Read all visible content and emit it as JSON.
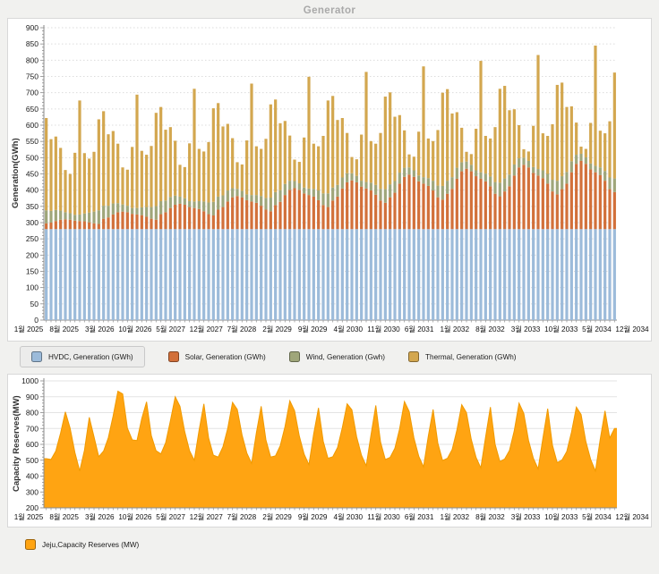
{
  "app": {
    "background": "#f1f1ef",
    "panel_border": "#d8d8d8",
    "title_color": "#a9a9a9"
  },
  "chart_data": [
    {
      "type": "bar",
      "stacked": true,
      "title": "Generator",
      "ylabel": "Generation(GWh)",
      "ylim": [
        0,
        900
      ],
      "ytick_step": 50,
      "grid": "dotted-horizontal",
      "legend_position": "bottom",
      "selected_legend": "HVDC, Generation (GWh)",
      "x_tick_labels": [
        "1월 2025",
        "8월 2025",
        "3월 2026",
        "10월 2026",
        "5월 2027",
        "12월 2027",
        "7월 2028",
        "2월 2029",
        "9월 2029",
        "4월 2030",
        "11월 2030",
        "6월 2031",
        "1월 2032",
        "8월 2032",
        "3월 2033",
        "10월 2033",
        "5월 2034",
        "12월 2034"
      ],
      "series": [
        {
          "name": "HVDC, Generation (GWh)",
          "color": "#9cbbda",
          "values": [
            280,
            280,
            280,
            280,
            280,
            280,
            280,
            280,
            280,
            280,
            280,
            280,
            280,
            280,
            280,
            280,
            280,
            280,
            280,
            280,
            280,
            280,
            280,
            280,
            280,
            280,
            280,
            280,
            280,
            280,
            280,
            280,
            280,
            280,
            280,
            280,
            280,
            280,
            280,
            280,
            280,
            280,
            280,
            280,
            280,
            280,
            280,
            280,
            280,
            280,
            280,
            280,
            280,
            280,
            280,
            280,
            280,
            280,
            280,
            280,
            280,
            280,
            280,
            280,
            280,
            280,
            280,
            280,
            280,
            280,
            280,
            280,
            280,
            280,
            280,
            280,
            280,
            280,
            280,
            280,
            280,
            280,
            280,
            280,
            280,
            280,
            280,
            280,
            280,
            280,
            280,
            280,
            280,
            280,
            280,
            280,
            280,
            280,
            280,
            280,
            280,
            280,
            280,
            280,
            280,
            280,
            280,
            280,
            280,
            280,
            280,
            280,
            280,
            280,
            280,
            280,
            280,
            280,
            280,
            280
          ]
        },
        {
          "name": "Solar, Generation (GWh)",
          "color": "#d2703a",
          "values": [
            18,
            20,
            25,
            29,
            30,
            29,
            26,
            25,
            24,
            21,
            18,
            16,
            32,
            36,
            45,
            52,
            54,
            52,
            47,
            45,
            43,
            38,
            32,
            29,
            46,
            52,
            65,
            75,
            78,
            75,
            68,
            65,
            62,
            55,
            46,
            42,
            60,
            68,
            85,
            98,
            102,
            98,
            89,
            85,
            81,
            72,
            60,
            55,
            74,
            84,
            105,
            121,
            126,
            121,
            110,
            105,
            100,
            89,
            74,
            68,
            88,
            100,
            125,
            144,
            150,
            144,
            131,
            125,
            119,
            106,
            88,
            81,
            98,
            112,
            140,
            161,
            168,
            161,
            147,
            140,
            133,
            119,
            98,
            91,
            109,
            124,
            155,
            178,
            186,
            178,
            163,
            155,
            147,
            132,
            109,
            101,
            116,
            132,
            165,
            190,
            198,
            190,
            173,
            165,
            157,
            140,
            116,
            107,
            123,
            140,
            175,
            201,
            210,
            201,
            184,
            175,
            166,
            149,
            123,
            114
          ]
        },
        {
          "name": "Wind, Generation (Gwh)",
          "color": "#9fa67a",
          "values": [
            40,
            36,
            34,
            28,
            22,
            20,
            18,
            20,
            24,
            30,
            36,
            42,
            40,
            36,
            34,
            28,
            22,
            20,
            18,
            20,
            24,
            30,
            36,
            42,
            40,
            36,
            34,
            28,
            22,
            20,
            18,
            20,
            24,
            30,
            36,
            42,
            40,
            36,
            34,
            28,
            22,
            20,
            18,
            20,
            24,
            30,
            36,
            42,
            40,
            36,
            34,
            28,
            22,
            20,
            18,
            20,
            24,
            30,
            36,
            42,
            40,
            36,
            34,
            28,
            22,
            20,
            18,
            20,
            24,
            30,
            36,
            42,
            40,
            36,
            34,
            28,
            22,
            20,
            18,
            20,
            24,
            30,
            36,
            42,
            40,
            36,
            34,
            28,
            22,
            20,
            18,
            20,
            24,
            30,
            36,
            42,
            40,
            36,
            34,
            28,
            22,
            20,
            18,
            20,
            24,
            30,
            36,
            42,
            40,
            36,
            34,
            28,
            22,
            20,
            18,
            20,
            24,
            30,
            36,
            42
          ]
        },
        {
          "name": "Thermal, Generation (GWh)",
          "color": "#d3a74f",
          "values": [
            284,
            221,
            226,
            193,
            130,
            121,
            191,
            351,
            186,
            166,
            184,
            280,
            291,
            220,
            223,
            183,
            114,
            111,
            188,
            349,
            174,
            161,
            188,
            287,
            290,
            218,
            215,
            169,
            98,
            96,
            178,
            347,
            161,
            154,
            186,
            288,
            288,
            212,
            205,
            154,
            82,
            81,
            166,
            343,
            150,
            145,
            182,
            287,
            285,
            206,
            194,
            139,
            66,
            66,
            154,
            344,
            139,
            136,
            177,
            286,
            282,
            200,
            183,
            124,
            50,
            51,
            142,
            339,
            128,
            127,
            172,
            285,
            283,
            198,
            177,
            115,
            40,
            42,
            135,
            341,
            122,
            122,
            171,
            287,
            282,
            196,
            171,
            106,
            30,
            33,
            128,
            343,
            116,
            117,
            169,
            289,
            285,
            198,
            170,
            102,
            26,
            29,
            127,
            351,
            114,
            117,
            171,
            295,
            288,
            200,
            169,
            99,
            22,
            26,
            125,
            370,
            113,
            116,
            173,
            326
          ]
        }
      ]
    },
    {
      "type": "area",
      "title": "",
      "ylabel": "Capacity Reserves(MW)",
      "ylim": [
        200,
        1000
      ],
      "ytick_step": 100,
      "grid": "solid-horizontal",
      "legend_position": "bottom",
      "x_tick_labels": [
        "1월 2025",
        "8월 2025",
        "3월 2026",
        "10월 2026",
        "5월 2027",
        "12월 2027",
        "7월 2028",
        "2월 2029",
        "9월 2029",
        "4월 2030",
        "11월 2030",
        "6월 2031",
        "1월 2032",
        "8월 2032",
        "3월 2033",
        "10월 2033",
        "5월 2034",
        "12월 2034"
      ],
      "series": [
        {
          "name": "Jeju,Capacity Reserves (MW)",
          "color": "#ffa412",
          "values": [
            510,
            505,
            558,
            672,
            805,
            702,
            548,
            432,
            562,
            770,
            648,
            522,
            558,
            642,
            778,
            935,
            918,
            702,
            628,
            624,
            762,
            868,
            655,
            560,
            540,
            610,
            748,
            900,
            840,
            680,
            560,
            500,
            688,
            855,
            640,
            532,
            520,
            585,
            700,
            865,
            820,
            660,
            545,
            480,
            672,
            840,
            628,
            520,
            528,
            592,
            712,
            875,
            812,
            652,
            538,
            472,
            665,
            830,
            620,
            512,
            522,
            580,
            705,
            855,
            818,
            648,
            532,
            465,
            658,
            845,
            615,
            505,
            518,
            575,
            698,
            870,
            808,
            640,
            525,
            458,
            650,
            820,
            608,
            498,
            512,
            568,
            690,
            850,
            800,
            632,
            518,
            452,
            645,
            835,
            600,
            492,
            508,
            562,
            685,
            860,
            795,
            625,
            512,
            445,
            638,
            825,
            595,
            485,
            502,
            555,
            678,
            835,
            788,
            618,
            505,
            432,
            630,
            812,
            640,
            700
          ]
        }
      ]
    }
  ]
}
